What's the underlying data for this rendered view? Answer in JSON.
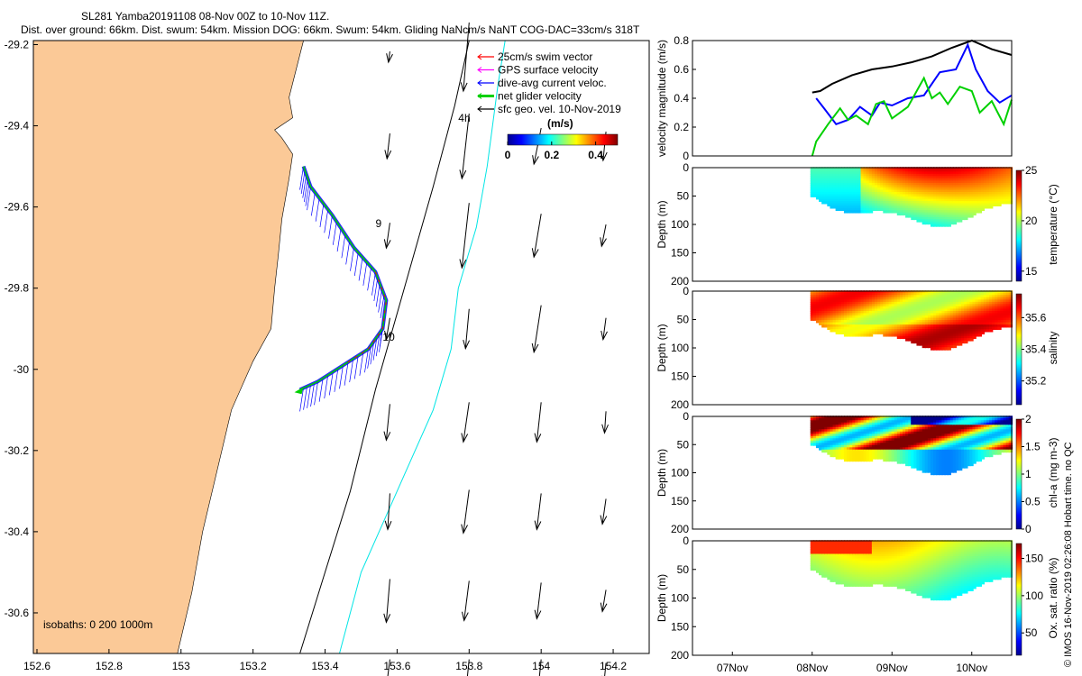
{
  "header": {
    "title_line1": "SL281 Yamba20191108 08-Nov 00Z to 10-Nov 11Z.",
    "title_line2": "Dist. over ground: 66km. Dist. swum: 54km. Mission DOG: 66km. Swum: 54km. Gliding NaNcm/s NaNT COG-DAC=33cm/s 318T"
  },
  "credit": "© IMOS 16-Nov-2019 02:26:08 Hobart time. no QC",
  "colors": {
    "land": "#fbc997",
    "swim": "#ff0000",
    "gps": "#ff00ff",
    "dac": "#0000ff",
    "net": "#00d000",
    "geo": "#000000",
    "contour200": "#000000",
    "contour1000": "#00e5e5"
  },
  "chart_data": [
    {
      "type": "map",
      "x_ticks": [
        "152.6",
        "152.8",
        "153",
        "153.2",
        "153.4",
        "153.6",
        "153.8",
        "154",
        "154.2"
      ],
      "y_ticks": [
        "-29.2",
        "-29.4",
        "-29.6",
        "-29.8",
        "-30",
        "-30.2",
        "-30.4",
        "-30.6"
      ],
      "xlim": [
        152.59,
        154.3
      ],
      "ylim": [
        -30.7,
        -29.19
      ],
      "legend": [
        {
          "label": "25cm/s swim vector",
          "color": "#ff0000"
        },
        {
          "label": "GPS surface velocity",
          "color": "#ff00ff"
        },
        {
          "label": "dive-avg current veloc.",
          "color": "#0000ff"
        },
        {
          "label": "net glider velocity",
          "color": "#00d000"
        },
        {
          "label": "sfc geo. vel. 10-Nov-2019",
          "color": "#000000"
        }
      ],
      "colorbar": {
        "label": "(m/s)",
        "ticks": [
          "0",
          "0.2",
          "0.4"
        ],
        "range": [
          0,
          0.5
        ]
      },
      "isobaths_label": "isobaths: 0   200  1000m",
      "annotations": [
        {
          "text": "4h",
          "lon": 153.77,
          "lat": -29.39
        },
        {
          "text": "9",
          "lon": 153.54,
          "lat": -29.65
        },
        {
          "text": "10",
          "lon": 153.56,
          "lat": -29.93
        }
      ],
      "coastline": [
        [
          152.99,
          -30.7
        ],
        [
          153.03,
          -30.55
        ],
        [
          153.06,
          -30.4
        ],
        [
          153.1,
          -30.25
        ],
        [
          153.14,
          -30.1
        ],
        [
          153.2,
          -29.98
        ],
        [
          153.25,
          -29.9
        ],
        [
          153.26,
          -29.8
        ],
        [
          153.27,
          -29.72
        ],
        [
          153.28,
          -29.63
        ],
        [
          153.3,
          -29.53
        ],
        [
          153.31,
          -29.47
        ],
        [
          153.28,
          -29.43
        ],
        [
          153.26,
          -29.41
        ],
        [
          153.31,
          -29.38
        ],
        [
          153.3,
          -29.33
        ],
        [
          153.32,
          -29.26
        ],
        [
          153.34,
          -29.19
        ]
      ],
      "isobath_200": [
        [
          153.33,
          -30.7
        ],
        [
          153.4,
          -30.5
        ],
        [
          153.47,
          -30.3
        ],
        [
          153.54,
          -30.05
        ],
        [
          153.62,
          -29.8
        ],
        [
          153.7,
          -29.55
        ],
        [
          153.76,
          -29.35
        ],
        [
          153.8,
          -29.19
        ]
      ],
      "isobath_1000": [
        [
          153.44,
          -30.7
        ],
        [
          153.5,
          -30.5
        ],
        [
          153.6,
          -30.3
        ],
        [
          153.7,
          -30.1
        ],
        [
          153.75,
          -29.95
        ],
        [
          153.77,
          -29.8
        ],
        [
          153.82,
          -29.65
        ],
        [
          153.85,
          -29.5
        ],
        [
          153.88,
          -29.3
        ],
        [
          153.9,
          -29.19
        ]
      ],
      "glider_track": [
        [
          153.34,
          -29.5
        ],
        [
          153.36,
          -29.55
        ],
        [
          153.42,
          -29.62
        ],
        [
          153.48,
          -29.7
        ],
        [
          153.54,
          -29.76
        ],
        [
          153.57,
          -29.83
        ],
        [
          153.56,
          -29.9
        ],
        [
          153.52,
          -29.95
        ],
        [
          153.45,
          -29.99
        ],
        [
          153.38,
          -30.03
        ],
        [
          153.33,
          -30.05
        ]
      ],
      "geo_vectors": {
        "lons": [
          153.58,
          153.8,
          154.0,
          154.18
        ],
        "lats": [
          -29.23,
          -29.45,
          -29.67,
          -29.9,
          -30.13,
          -30.35,
          -30.57,
          -30.75
        ],
        "arrows_m_s": [
          [
            [
              -0.02,
              -0.15
            ],
            [
              -0.08,
              -0.95
            ],
            [
              0,
              0
            ],
            [
              0,
              0
            ]
          ],
          [
            [
              -0.04,
              -0.35
            ],
            [
              -0.1,
              -0.9
            ],
            [
              -0.1,
              -0.5
            ],
            [
              -0.04,
              -0.4
            ]
          ],
          [
            [
              -0.05,
              -0.35
            ],
            [
              -0.1,
              -0.9
            ],
            [
              -0.1,
              -0.6
            ],
            [
              -0.06,
              -0.3
            ]
          ],
          [
            [
              -0.05,
              -0.3
            ],
            [
              -0.05,
              -0.55
            ],
            [
              -0.1,
              -0.65
            ],
            [
              -0.04,
              -0.3
            ]
          ],
          [
            [
              -0.05,
              -0.5
            ],
            [
              -0.08,
              -0.55
            ],
            [
              -0.06,
              -0.55
            ],
            [
              -0.02,
              -0.3
            ]
          ],
          [
            [
              -0.03,
              -0.5
            ],
            [
              -0.08,
              -0.6
            ],
            [
              -0.06,
              -0.5
            ],
            [
              -0.05,
              -0.35
            ]
          ],
          [
            [
              -0.05,
              -0.6
            ],
            [
              -0.07,
              -0.55
            ],
            [
              -0.06,
              -0.5
            ],
            [
              -0.05,
              -0.3
            ]
          ],
          [
            [
              -0.05,
              -0.4
            ],
            [
              -0.04,
              -0.4
            ],
            [
              -0.04,
              -0.4
            ],
            [
              -0.03,
              -0.3
            ]
          ]
        ]
      }
    },
    {
      "type": "line",
      "ylabel": "velocity magnitude (m/s)",
      "y_ticks": [
        "0",
        "0.2",
        "0.4",
        "0.6",
        "0.8"
      ],
      "ylim": [
        0,
        0.8
      ],
      "xlim": [
        "06-Nov 12Z",
        "10-Nov 12Z"
      ],
      "series": [
        {
          "color": "#000000",
          "x": [
            8.0,
            8.1,
            8.25,
            8.5,
            8.75,
            9.0,
            9.25,
            9.5,
            9.75,
            10.0,
            10.25,
            10.5
          ],
          "y": [
            0.44,
            0.45,
            0.5,
            0.56,
            0.6,
            0.62,
            0.65,
            0.69,
            0.75,
            0.8,
            0.74,
            0.7
          ]
        },
        {
          "color": "#0000ff",
          "x": [
            8.05,
            8.15,
            8.3,
            8.45,
            8.6,
            8.75,
            8.85,
            9.0,
            9.2,
            9.4,
            9.6,
            9.8,
            9.95,
            10.05,
            10.2,
            10.35,
            10.5
          ],
          "y": [
            0.4,
            0.33,
            0.22,
            0.25,
            0.34,
            0.28,
            0.37,
            0.35,
            0.4,
            0.42,
            0.58,
            0.6,
            0.77,
            0.6,
            0.45,
            0.37,
            0.42
          ]
        },
        {
          "color": "#00d000",
          "x": [
            8.0,
            8.05,
            8.2,
            8.35,
            8.45,
            8.55,
            8.7,
            8.8,
            8.9,
            9.0,
            9.2,
            9.4,
            9.5,
            9.6,
            9.7,
            9.85,
            10.0,
            10.1,
            10.25,
            10.4,
            10.5
          ],
          "y": [
            0.0,
            0.1,
            0.22,
            0.33,
            0.25,
            0.28,
            0.22,
            0.36,
            0.38,
            0.26,
            0.34,
            0.54,
            0.4,
            0.44,
            0.36,
            0.48,
            0.45,
            0.3,
            0.38,
            0.22,
            0.39
          ]
        }
      ]
    },
    {
      "type": "heatmap",
      "ylabel": "Depth (m)",
      "clabel": "temperature (°C)",
      "y_ticks": [
        "0",
        "50",
        "100",
        "150",
        "200"
      ],
      "c_ticks": [
        "25",
        "20",
        "15"
      ],
      "crange": [
        14,
        25
      ],
      "field": "temperature"
    },
    {
      "type": "heatmap",
      "ylabel": "Depth (m)",
      "clabel": "salinity",
      "y_ticks": [
        "0",
        "50",
        "100",
        "150",
        "200"
      ],
      "c_ticks": [
        "35.6",
        "35.4",
        "35.2"
      ],
      "crange": [
        35.05,
        35.75
      ],
      "field": "salinity"
    },
    {
      "type": "heatmap",
      "ylabel": "Depth (m)",
      "clabel": "chl-a (mg m-3)",
      "y_ticks": [
        "0",
        "50",
        "100",
        "150",
        "200"
      ],
      "c_ticks": [
        "2",
        "1.5",
        "1",
        "0.5",
        "0"
      ],
      "crange": [
        0,
        2
      ],
      "field": "chla"
    },
    {
      "type": "heatmap",
      "ylabel": "Depth (m)",
      "clabel": "Ox. sat. ratio (%)",
      "y_ticks": [
        "0",
        "50",
        "100",
        "150",
        "200"
      ],
      "c_ticks": [
        "150",
        "100",
        "50"
      ],
      "crange": [
        20,
        170
      ],
      "field": "oxygen"
    }
  ],
  "time_axis": {
    "ticks": [
      "07Nov",
      "08Nov",
      "09Nov",
      "10Nov"
    ]
  }
}
